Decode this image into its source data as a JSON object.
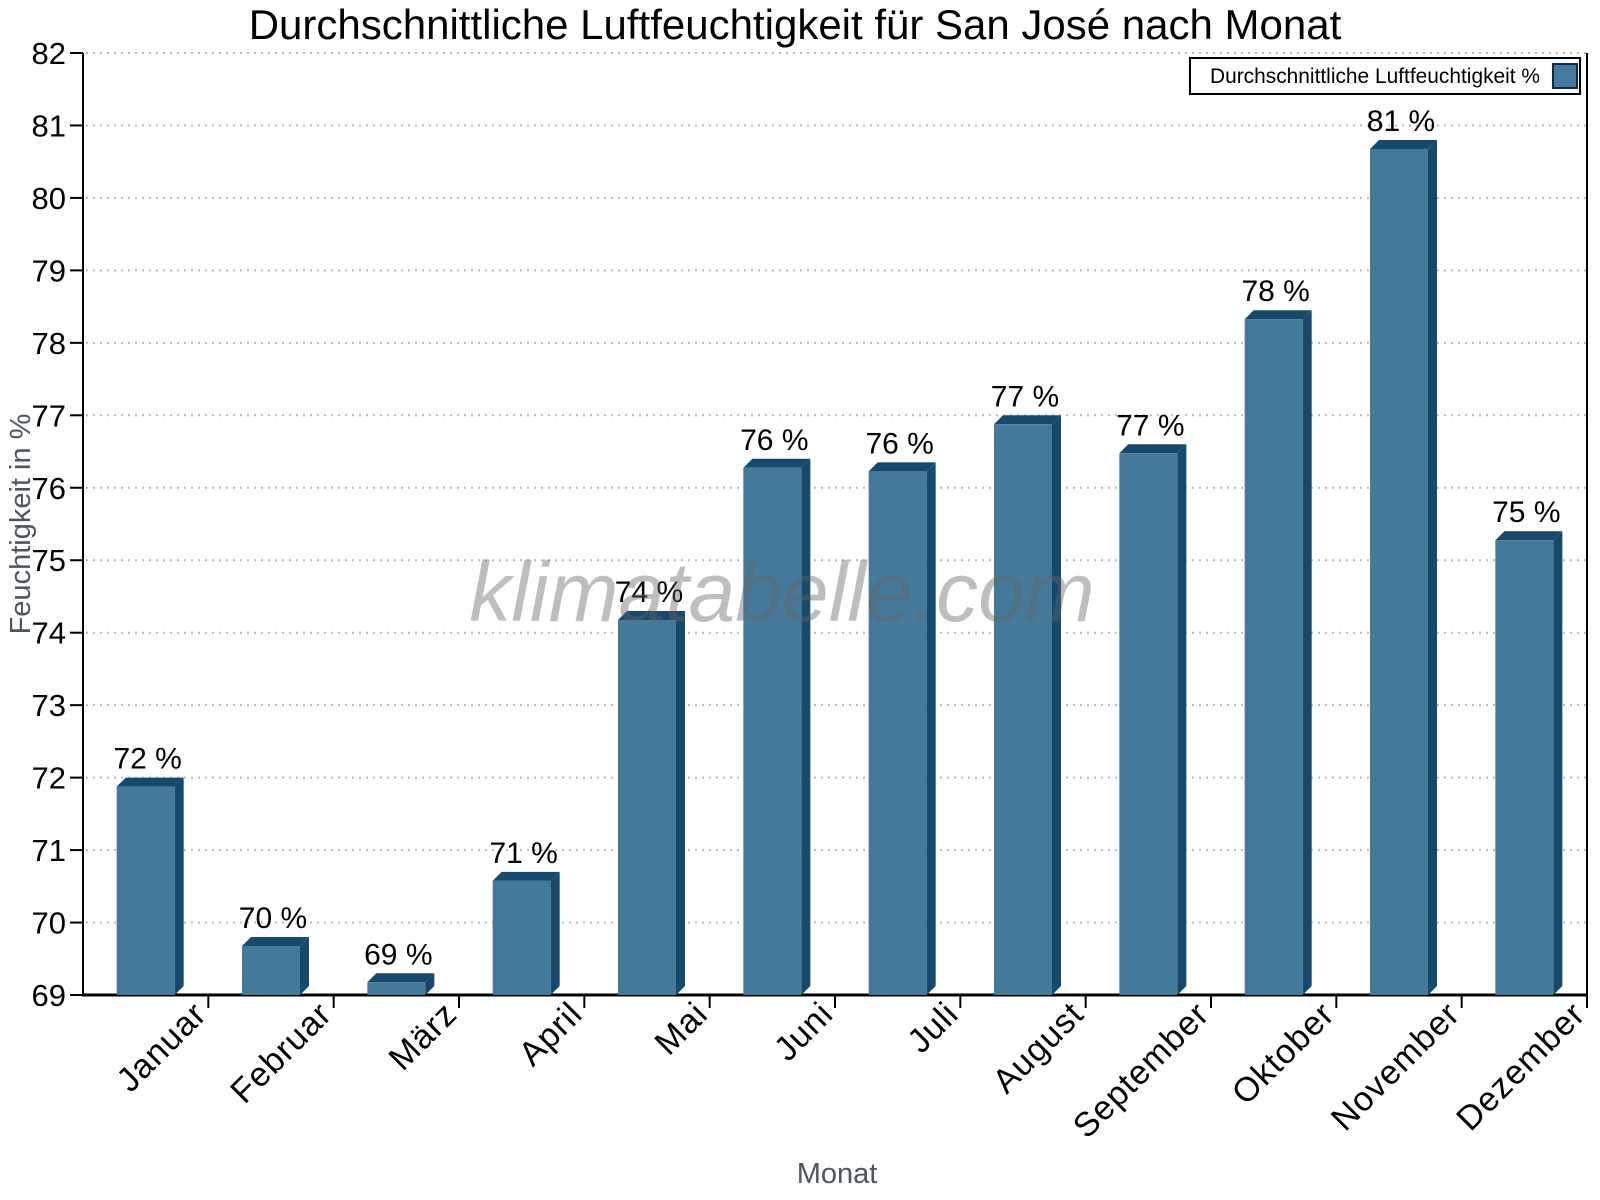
{
  "chart_data": {
    "type": "bar",
    "title": "Durchschnittliche Luftfeuchtigkeit für San José nach Monat",
    "xlabel": "Monat",
    "ylabel": "Feuchtigkeit in %",
    "categories": [
      "Januar",
      "Februar",
      "März",
      "April",
      "Mai",
      "Juni",
      "Juli",
      "August",
      "September",
      "Oktober",
      "November",
      "Dezember"
    ],
    "values": [
      72.0,
      69.8,
      69.3,
      70.7,
      74.3,
      76.4,
      76.35,
      77.0,
      76.6,
      78.45,
      80.8,
      75.4
    ],
    "value_labels": [
      "72 %",
      "70 %",
      "69 %",
      "71 %",
      "74 %",
      "76 %",
      "76 %",
      "77 %",
      "77 %",
      "78 %",
      "81 %",
      "75 %"
    ],
    "ylim": [
      69,
      82
    ],
    "ytick_step": 1,
    "grid": "horizontal-dotted",
    "legend": {
      "label": "Durchschnittliche Luftfeuchtigkeit %",
      "position": "top-right"
    },
    "watermark": "klimatabelle.com",
    "colors": {
      "bar_front": "#44799A",
      "bar_side": "#16496B",
      "legend_swatch": "#4579A0",
      "legend_swatch_border": "#0f2d42",
      "grid": "#b9b9b9",
      "axis": "#000000",
      "tick_label": "#000000",
      "axis_title": "#4c565e",
      "watermark": "rgba(100,100,100,0.42)",
      "background": "#ffffff"
    }
  }
}
